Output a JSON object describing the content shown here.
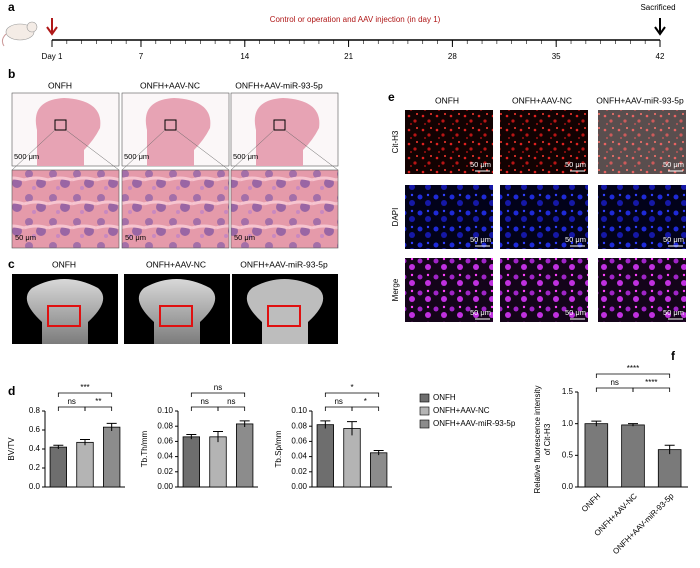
{
  "panel_labels": [
    "a",
    "b",
    "c",
    "d",
    "e",
    "f"
  ],
  "timeline": {
    "lim": [
      1,
      42
    ],
    "ticks": [
      {
        "value": 1,
        "label": "Day 1"
      },
      7,
      14,
      21,
      28,
      35,
      42
    ],
    "annotation": "Control or operation and AAV injection (in day 1)",
    "end_label": "Sacrificed"
  },
  "panel_b": {
    "columns": [
      "ONFH",
      "ONFH+AAV-NC",
      "ONFH+AAV-miR-93-5p"
    ],
    "scale_top": [
      "500 μm",
      "500 μm",
      "500 μm"
    ],
    "scale_bottom": [
      "50 μm",
      "50 μm",
      "50 μm"
    ]
  },
  "panel_c": {
    "columns": [
      "ONFH",
      "ONFH+AAV-NC",
      "ONFH+AAV-miR-93-5p"
    ]
  },
  "panel_e": {
    "columns": [
      "ONFH",
      "ONFH+AAV-NC",
      "ONFH+AAV-miR-93-5p"
    ],
    "rows": [
      "Cit-H3",
      "DAPI",
      "Merge"
    ],
    "scale": [
      [
        "50 μm",
        "50 μm",
        "50 μm"
      ],
      [
        "50 μm",
        "50 μm",
        "50 μm"
      ],
      [
        "50 μm",
        "50 μm",
        "50 μm"
      ]
    ]
  },
  "chart_data": [
    {
      "type": "bar",
      "y_label": "BV/TV",
      "values": [
        0.42,
        0.47,
        0.63
      ],
      "errors": [
        0.02,
        0.03,
        0.04
      ],
      "colors": [
        "#6e6e6e",
        "#b4b4b4",
        "#8c8c8c"
      ],
      "ylim": [
        0,
        0.8
      ],
      "yticks": [
        {
          "value": 0,
          "label": "0.0"
        },
        0.2,
        0.4,
        0.6,
        0.8
      ],
      "comparisons": [
        {
          "between": [
            0,
            2
          ],
          "label": "***"
        },
        {
          "between": [
            0,
            1
          ],
          "label": "ns"
        },
        {
          "between": [
            1,
            2
          ],
          "label": "**"
        }
      ]
    },
    {
      "type": "bar",
      "y_label": "Tb.Th/mm",
      "values": [
        0.066,
        0.066,
        0.083
      ],
      "errors": [
        0.003,
        0.007,
        0.004
      ],
      "colors": [
        "#6e6e6e",
        "#b4b4b4",
        "#8c8c8c"
      ],
      "ylim": [
        0,
        0.1
      ],
      "yticks": [
        {
          "value": 0,
          "label": "0.00"
        },
        0.02,
        0.04,
        0.06,
        0.08,
        {
          "value": 0.1,
          "label": "0.10"
        }
      ],
      "comparisons": [
        {
          "between": [
            0,
            2
          ],
          "label": "ns"
        },
        {
          "between": [
            0,
            1
          ],
          "label": "ns"
        },
        {
          "between": [
            1,
            2
          ],
          "label": "ns"
        }
      ]
    },
    {
      "type": "bar",
      "y_label": "Tb.Sp/mm",
      "values": [
        0.082,
        0.077,
        0.045
      ],
      "errors": [
        0.005,
        0.009,
        0.003
      ],
      "colors": [
        "#6e6e6e",
        "#b4b4b4",
        "#8c8c8c"
      ],
      "ylim": [
        0,
        0.1
      ],
      "yticks": [
        {
          "value": 0,
          "label": "0.00"
        },
        0.02,
        0.04,
        0.06,
        0.08,
        {
          "value": 0.1,
          "label": "0.10"
        }
      ],
      "categories": [
        "ONFH",
        "ONFH+AAV-NC",
        "ONFH+AAV-miR-93-5p"
      ],
      "legend": "right",
      "comparisons": [
        {
          "between": [
            0,
            2
          ],
          "label": "*"
        },
        {
          "between": [
            0,
            1
          ],
          "label": "ns"
        },
        {
          "between": [
            1,
            2
          ],
          "label": "*"
        }
      ]
    },
    {
      "type": "bar",
      "y_label": "Relative fluorescence intensity of Cit-H3",
      "values": [
        1.0,
        0.98,
        0.59
      ],
      "errors": [
        0.04,
        0.02,
        0.07
      ],
      "colors": [
        "#7a7a7a",
        "#7a7a7a",
        "#7a7a7a"
      ],
      "ylim": [
        0,
        1.5
      ],
      "yticks": [
        {
          "value": 0,
          "label": "0.0"
        },
        0.5,
        {
          "value": 1,
          "label": "1.0"
        },
        1.5
      ],
      "categories": [
        "ONFH",
        "ONFH+AAV-NC",
        "ONFH+AAV-miR-93-5p"
      ],
      "comparisons": [
        {
          "between": [
            0,
            2
          ],
          "label": "****"
        },
        {
          "between": [
            0,
            1
          ],
          "label": "ns"
        },
        {
          "between": [
            1,
            2
          ],
          "label": "****"
        }
      ]
    }
  ]
}
